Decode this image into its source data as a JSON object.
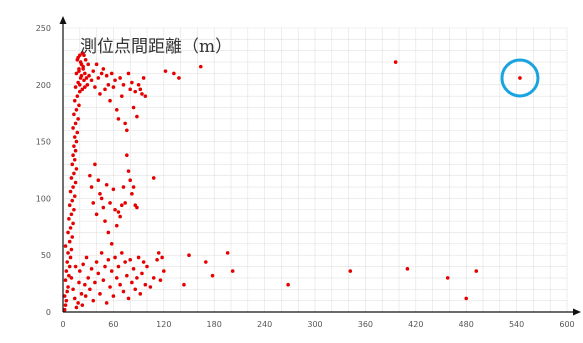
{
  "chart_data": {
    "type": "scatter",
    "title": "測位点間距離（m）",
    "xlim": [
      0,
      600
    ],
    "ylim": [
      0,
      250
    ],
    "x_ticks": [
      0,
      60,
      120,
      180,
      240,
      300,
      360,
      420,
      480,
      540,
      600
    ],
    "y_ticks": [
      0,
      50,
      100,
      150,
      200,
      250
    ],
    "grid": true,
    "colors": {
      "points": "#e60000",
      "highlight": "#1aa3e0",
      "axis": "#111111",
      "grid": "#e2e2e2"
    },
    "highlight": {
      "x": 544,
      "y": 206
    },
    "points": [
      [
        2,
        2
      ],
      [
        3,
        6
      ],
      [
        4,
        10
      ],
      [
        2,
        14
      ],
      [
        5,
        18
      ],
      [
        6,
        22
      ],
      [
        3,
        28
      ],
      [
        7,
        32
      ],
      [
        4,
        36
      ],
      [
        8,
        40
      ],
      [
        5,
        44
      ],
      [
        9,
        48
      ],
      [
        6,
        52
      ],
      [
        10,
        55
      ],
      [
        3,
        58
      ],
      [
        8,
        62
      ],
      [
        11,
        66
      ],
      [
        6,
        70
      ],
      [
        9,
        74
      ],
      [
        12,
        78
      ],
      [
        7,
        82
      ],
      [
        10,
        86
      ],
      [
        13,
        90
      ],
      [
        8,
        94
      ],
      [
        11,
        98
      ],
      [
        14,
        102
      ],
      [
        9,
        106
      ],
      [
        12,
        110
      ],
      [
        15,
        114
      ],
      [
        10,
        118
      ],
      [
        13,
        122
      ],
      [
        16,
        126
      ],
      [
        11,
        130
      ],
      [
        14,
        134
      ],
      [
        12,
        138
      ],
      [
        15,
        142
      ],
      [
        13,
        146
      ],
      [
        16,
        150
      ],
      [
        14,
        154
      ],
      [
        17,
        158
      ],
      [
        12,
        162
      ],
      [
        15,
        166
      ],
      [
        18,
        170
      ],
      [
        13,
        174
      ],
      [
        16,
        178
      ],
      [
        19,
        182
      ],
      [
        14,
        186
      ],
      [
        17,
        190
      ],
      [
        20,
        194
      ],
      [
        15,
        198
      ],
      [
        18,
        202
      ],
      [
        21,
        206
      ],
      [
        16,
        210
      ],
      [
        19,
        214
      ],
      [
        22,
        218
      ],
      [
        17,
        222
      ],
      [
        20,
        226
      ],
      [
        23,
        228
      ],
      [
        18,
        224
      ],
      [
        21,
        220
      ],
      [
        24,
        216
      ],
      [
        19,
        212
      ],
      [
        22,
        208
      ],
      [
        25,
        204
      ],
      [
        20,
        200
      ],
      [
        23,
        196
      ],
      [
        26,
        210
      ],
      [
        27,
        222
      ],
      [
        28,
        206
      ],
      [
        24,
        214
      ],
      [
        29,
        200
      ],
      [
        30,
        218
      ],
      [
        25,
        226
      ],
      [
        31,
        208
      ],
      [
        26,
        198
      ],
      [
        14,
        12
      ],
      [
        18,
        8
      ],
      [
        22,
        16
      ],
      [
        26,
        24
      ],
      [
        30,
        30
      ],
      [
        20,
        36
      ],
      [
        24,
        42
      ],
      [
        28,
        48
      ],
      [
        16,
        4
      ],
      [
        12,
        20
      ],
      [
        10,
        30
      ],
      [
        15,
        40
      ],
      [
        19,
        26
      ],
      [
        23,
        6
      ],
      [
        27,
        14
      ],
      [
        32,
        20
      ],
      [
        34,
        38
      ],
      [
        36,
        10
      ],
      [
        38,
        26
      ],
      [
        40,
        44
      ],
      [
        42,
        34
      ],
      [
        44,
        16
      ],
      [
        46,
        52
      ],
      [
        48,
        28
      ],
      [
        50,
        40
      ],
      [
        52,
        8
      ],
      [
        54,
        46
      ],
      [
        56,
        22
      ],
      [
        58,
        36
      ],
      [
        60,
        14
      ],
      [
        62,
        48
      ],
      [
        64,
        30
      ],
      [
        66,
        40
      ],
      [
        68,
        24
      ],
      [
        70,
        52
      ],
      [
        72,
        18
      ],
      [
        74,
        44
      ],
      [
        76,
        32
      ],
      [
        78,
        12
      ],
      [
        80,
        46
      ],
      [
        82,
        26
      ],
      [
        84,
        38
      ],
      [
        86,
        20
      ],
      [
        88,
        30
      ],
      [
        90,
        48
      ],
      [
        92,
        16
      ],
      [
        94,
        34
      ],
      [
        96,
        44
      ],
      [
        98,
        24
      ],
      [
        100,
        40
      ],
      [
        104,
        22
      ],
      [
        108,
        30
      ],
      [
        112,
        46
      ],
      [
        116,
        28
      ],
      [
        120,
        36
      ],
      [
        34,
        204
      ],
      [
        36,
        212
      ],
      [
        38,
        198
      ],
      [
        40,
        218
      ],
      [
        42,
        206
      ],
      [
        44,
        192
      ],
      [
        46,
        210
      ],
      [
        48,
        214
      ],
      [
        50,
        196
      ],
      [
        52,
        208
      ],
      [
        54,
        200
      ],
      [
        56,
        186
      ],
      [
        58,
        210
      ],
      [
        60,
        198
      ],
      [
        62,
        204
      ],
      [
        64,
        178
      ],
      [
        66,
        170
      ],
      [
        68,
        206
      ],
      [
        70,
        190
      ],
      [
        72,
        200
      ],
      [
        74,
        166
      ],
      [
        76,
        160
      ],
      [
        78,
        210
      ],
      [
        80,
        196
      ],
      [
        82,
        202
      ],
      [
        84,
        180
      ],
      [
        86,
        194
      ],
      [
        88,
        172
      ],
      [
        90,
        200
      ],
      [
        92,
        196
      ],
      [
        94,
        192
      ],
      [
        96,
        206
      ],
      [
        98,
        190
      ],
      [
        32,
        120
      ],
      [
        34,
        110
      ],
      [
        36,
        96
      ],
      [
        38,
        130
      ],
      [
        40,
        86
      ],
      [
        42,
        116
      ],
      [
        44,
        104
      ],
      [
        46,
        100
      ],
      [
        48,
        92
      ],
      [
        50,
        80
      ],
      [
        52,
        112
      ],
      [
        54,
        70
      ],
      [
        56,
        96
      ],
      [
        58,
        60
      ],
      [
        60,
        108
      ],
      [
        62,
        90
      ],
      [
        64,
        76
      ],
      [
        66,
        88
      ],
      [
        68,
        84
      ],
      [
        70,
        94
      ],
      [
        72,
        110
      ],
      [
        74,
        96
      ],
      [
        76,
        138
      ],
      [
        78,
        124
      ],
      [
        80,
        116
      ],
      [
        82,
        104
      ],
      [
        84,
        110
      ],
      [
        86,
        94
      ],
      [
        88,
        92
      ],
      [
        108,
        118
      ],
      [
        114,
        52
      ],
      [
        118,
        48
      ],
      [
        122,
        212
      ],
      [
        132,
        210
      ],
      [
        138,
        206
      ],
      [
        164,
        216
      ],
      [
        144,
        24
      ],
      [
        150,
        50
      ],
      [
        170,
        44
      ],
      [
        178,
        32
      ],
      [
        196,
        52
      ],
      [
        202,
        36
      ],
      [
        268,
        24
      ],
      [
        342,
        36
      ],
      [
        396,
        220
      ],
      [
        410,
        38
      ],
      [
        458,
        30
      ],
      [
        480,
        12
      ],
      [
        492,
        36
      ],
      [
        544,
        206
      ]
    ]
  }
}
